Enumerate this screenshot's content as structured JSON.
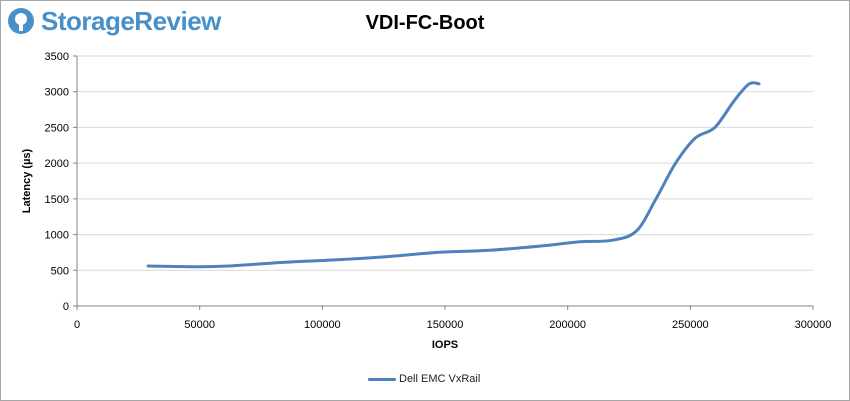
{
  "brand": {
    "name": "StorageReview",
    "accent": "#4a90c8",
    "icon": "storagereview-logo-icon"
  },
  "chart_data": {
    "type": "line",
    "title": "VDI-FC-Boot",
    "xlabel": "IOPS",
    "ylabel": "Latency (µs)",
    "xlim": [
      0,
      300000
    ],
    "ylim": [
      0,
      3500
    ],
    "xticks": [
      0,
      50000,
      100000,
      150000,
      200000,
      250000,
      300000
    ],
    "yticks": [
      0,
      500,
      1000,
      1500,
      2000,
      2500,
      3000,
      3500
    ],
    "grid": "horizontal",
    "legend_position": "bottom",
    "series": [
      {
        "name": "Dell EMC VxRail",
        "color": "#4f81bd",
        "x": [
          29000,
          50000,
          62000,
          84000,
          105000,
          126000,
          147000,
          168000,
          189000,
          205000,
          218000,
          228000,
          236000,
          244000,
          252000,
          260000,
          268000,
          274000,
          278000
        ],
        "y": [
          560,
          550,
          560,
          610,
          645,
          690,
          750,
          780,
          840,
          900,
          920,
          1050,
          1500,
          2000,
          2350,
          2500,
          2880,
          3110,
          3110
        ]
      }
    ]
  }
}
